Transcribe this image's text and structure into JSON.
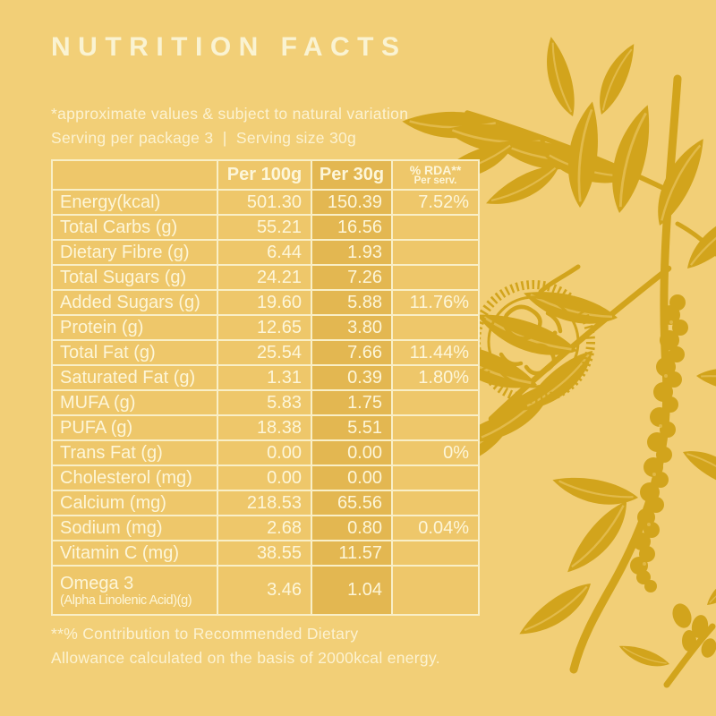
{
  "title": "NUTRITION FACTS",
  "notes": {
    "line1": "*approximate values & subject to natural variation",
    "line2": "Serving per package 3  |  Serving size 30g"
  },
  "table": {
    "headers": {
      "col1": "",
      "col2": "Per 100g",
      "col3": "Per 30g",
      "col4_line1": "% RDA**",
      "col4_line2": "Per serv."
    },
    "rows": [
      {
        "label": "Energy(kcal)",
        "per100g": "501.30",
        "per30g": "150.39",
        "rda": "7.52%"
      },
      {
        "label": "Total Carbs (g)",
        "per100g": "55.21",
        "per30g": "16.56",
        "rda": ""
      },
      {
        "label": "Dietary Fibre (g)",
        "per100g": "6.44",
        "per30g": "1.93",
        "rda": ""
      },
      {
        "label": "Total Sugars (g)",
        "per100g": "24.21",
        "per30g": "7.26",
        "rda": ""
      },
      {
        "label": "Added Sugars (g)",
        "per100g": "19.60",
        "per30g": "5.88",
        "rda": "11.76%"
      },
      {
        "label": "Protein (g)",
        "per100g": "12.65",
        "per30g": "3.80",
        "rda": ""
      },
      {
        "label": "Total Fat (g)",
        "per100g": "25.54",
        "per30g": "7.66",
        "rda": "11.44%"
      },
      {
        "label": "Saturated Fat (g)",
        "per100g": "1.31",
        "per30g": "0.39",
        "rda": "1.80%"
      },
      {
        "label": "MUFA (g)",
        "per100g": "5.83",
        "per30g": "1.75",
        "rda": ""
      },
      {
        "label": "PUFA (g)",
        "per100g": "18.38",
        "per30g": "5.51",
        "rda": ""
      },
      {
        "label": "Trans Fat (g)",
        "per100g": "0.00",
        "per30g": "0.00",
        "rda": "0%"
      },
      {
        "label": "Cholesterol (mg)",
        "per100g": "0.00",
        "per30g": "0.00",
        "rda": ""
      },
      {
        "label": "Calcium (mg)",
        "per100g": "218.53",
        "per30g": "65.56",
        "rda": ""
      },
      {
        "label": "Sodium (mg)",
        "per100g": "2.68",
        "per30g": "0.80",
        "rda": "0.04%"
      },
      {
        "label": "Vitamin C (mg)",
        "per100g": "38.55",
        "per30g": "11.57",
        "rda": ""
      },
      {
        "label": "Omega 3",
        "sublabel": "(Alpha Linolenic Acid)(g)",
        "per100g": "3.46",
        "per30g": "1.04",
        "rda": ""
      }
    ]
  },
  "footer": {
    "line1": "**% Contribution to Recommended Dietary",
    "line2": "Allowance calculated on the basis of 2000kcal energy."
  },
  "illustration": {
    "name": "walnut-branch",
    "description": "engraved walnut branch with leaves, walnut cross-section and catkin"
  },
  "colors": {
    "bg": "#f2cf77",
    "ink": "#d2a41c",
    "cell": "#eec76a",
    "cell-dark": "#e3b751",
    "line": "#f9efc7",
    "text": "#fdf6d9",
    "title": "#faf3d2"
  }
}
